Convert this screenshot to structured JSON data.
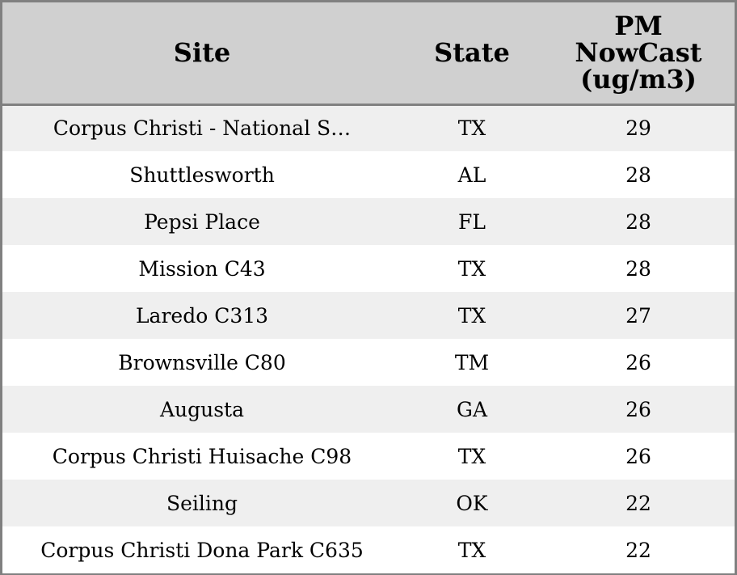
{
  "table": {
    "columns": [
      "Site",
      "State",
      "PM NowCast (ug/m3)"
    ],
    "header_lines": {
      "pm": [
        "PM",
        "NowCast",
        "(ug/m3)"
      ]
    },
    "rows": [
      {
        "site": "Corpus Christi - National S…",
        "state": "TX",
        "pm": "29"
      },
      {
        "site": "Shuttlesworth",
        "state": "AL",
        "pm": "28"
      },
      {
        "site": "Pepsi Place",
        "state": "FL",
        "pm": "28"
      },
      {
        "site": "Mission C43",
        "state": "TX",
        "pm": "28"
      },
      {
        "site": "Laredo C313",
        "state": "TX",
        "pm": "27"
      },
      {
        "site": "Brownsville C80",
        "state": "TM",
        "pm": "26"
      },
      {
        "site": "Augusta",
        "state": "GA",
        "pm": "26"
      },
      {
        "site": "Corpus Christi Huisache C98",
        "state": "TX",
        "pm": "26"
      },
      {
        "site": "Seiling",
        "state": "OK",
        "pm": "22"
      },
      {
        "site": "Corpus Christi Dona Park C635",
        "state": "TX",
        "pm": "22"
      }
    ]
  },
  "colors": {
    "header_bg": "#d0d0d0",
    "row_alt_bg": "#efefef",
    "row_bg": "#ffffff",
    "border": "#808080",
    "text": "#000000"
  }
}
